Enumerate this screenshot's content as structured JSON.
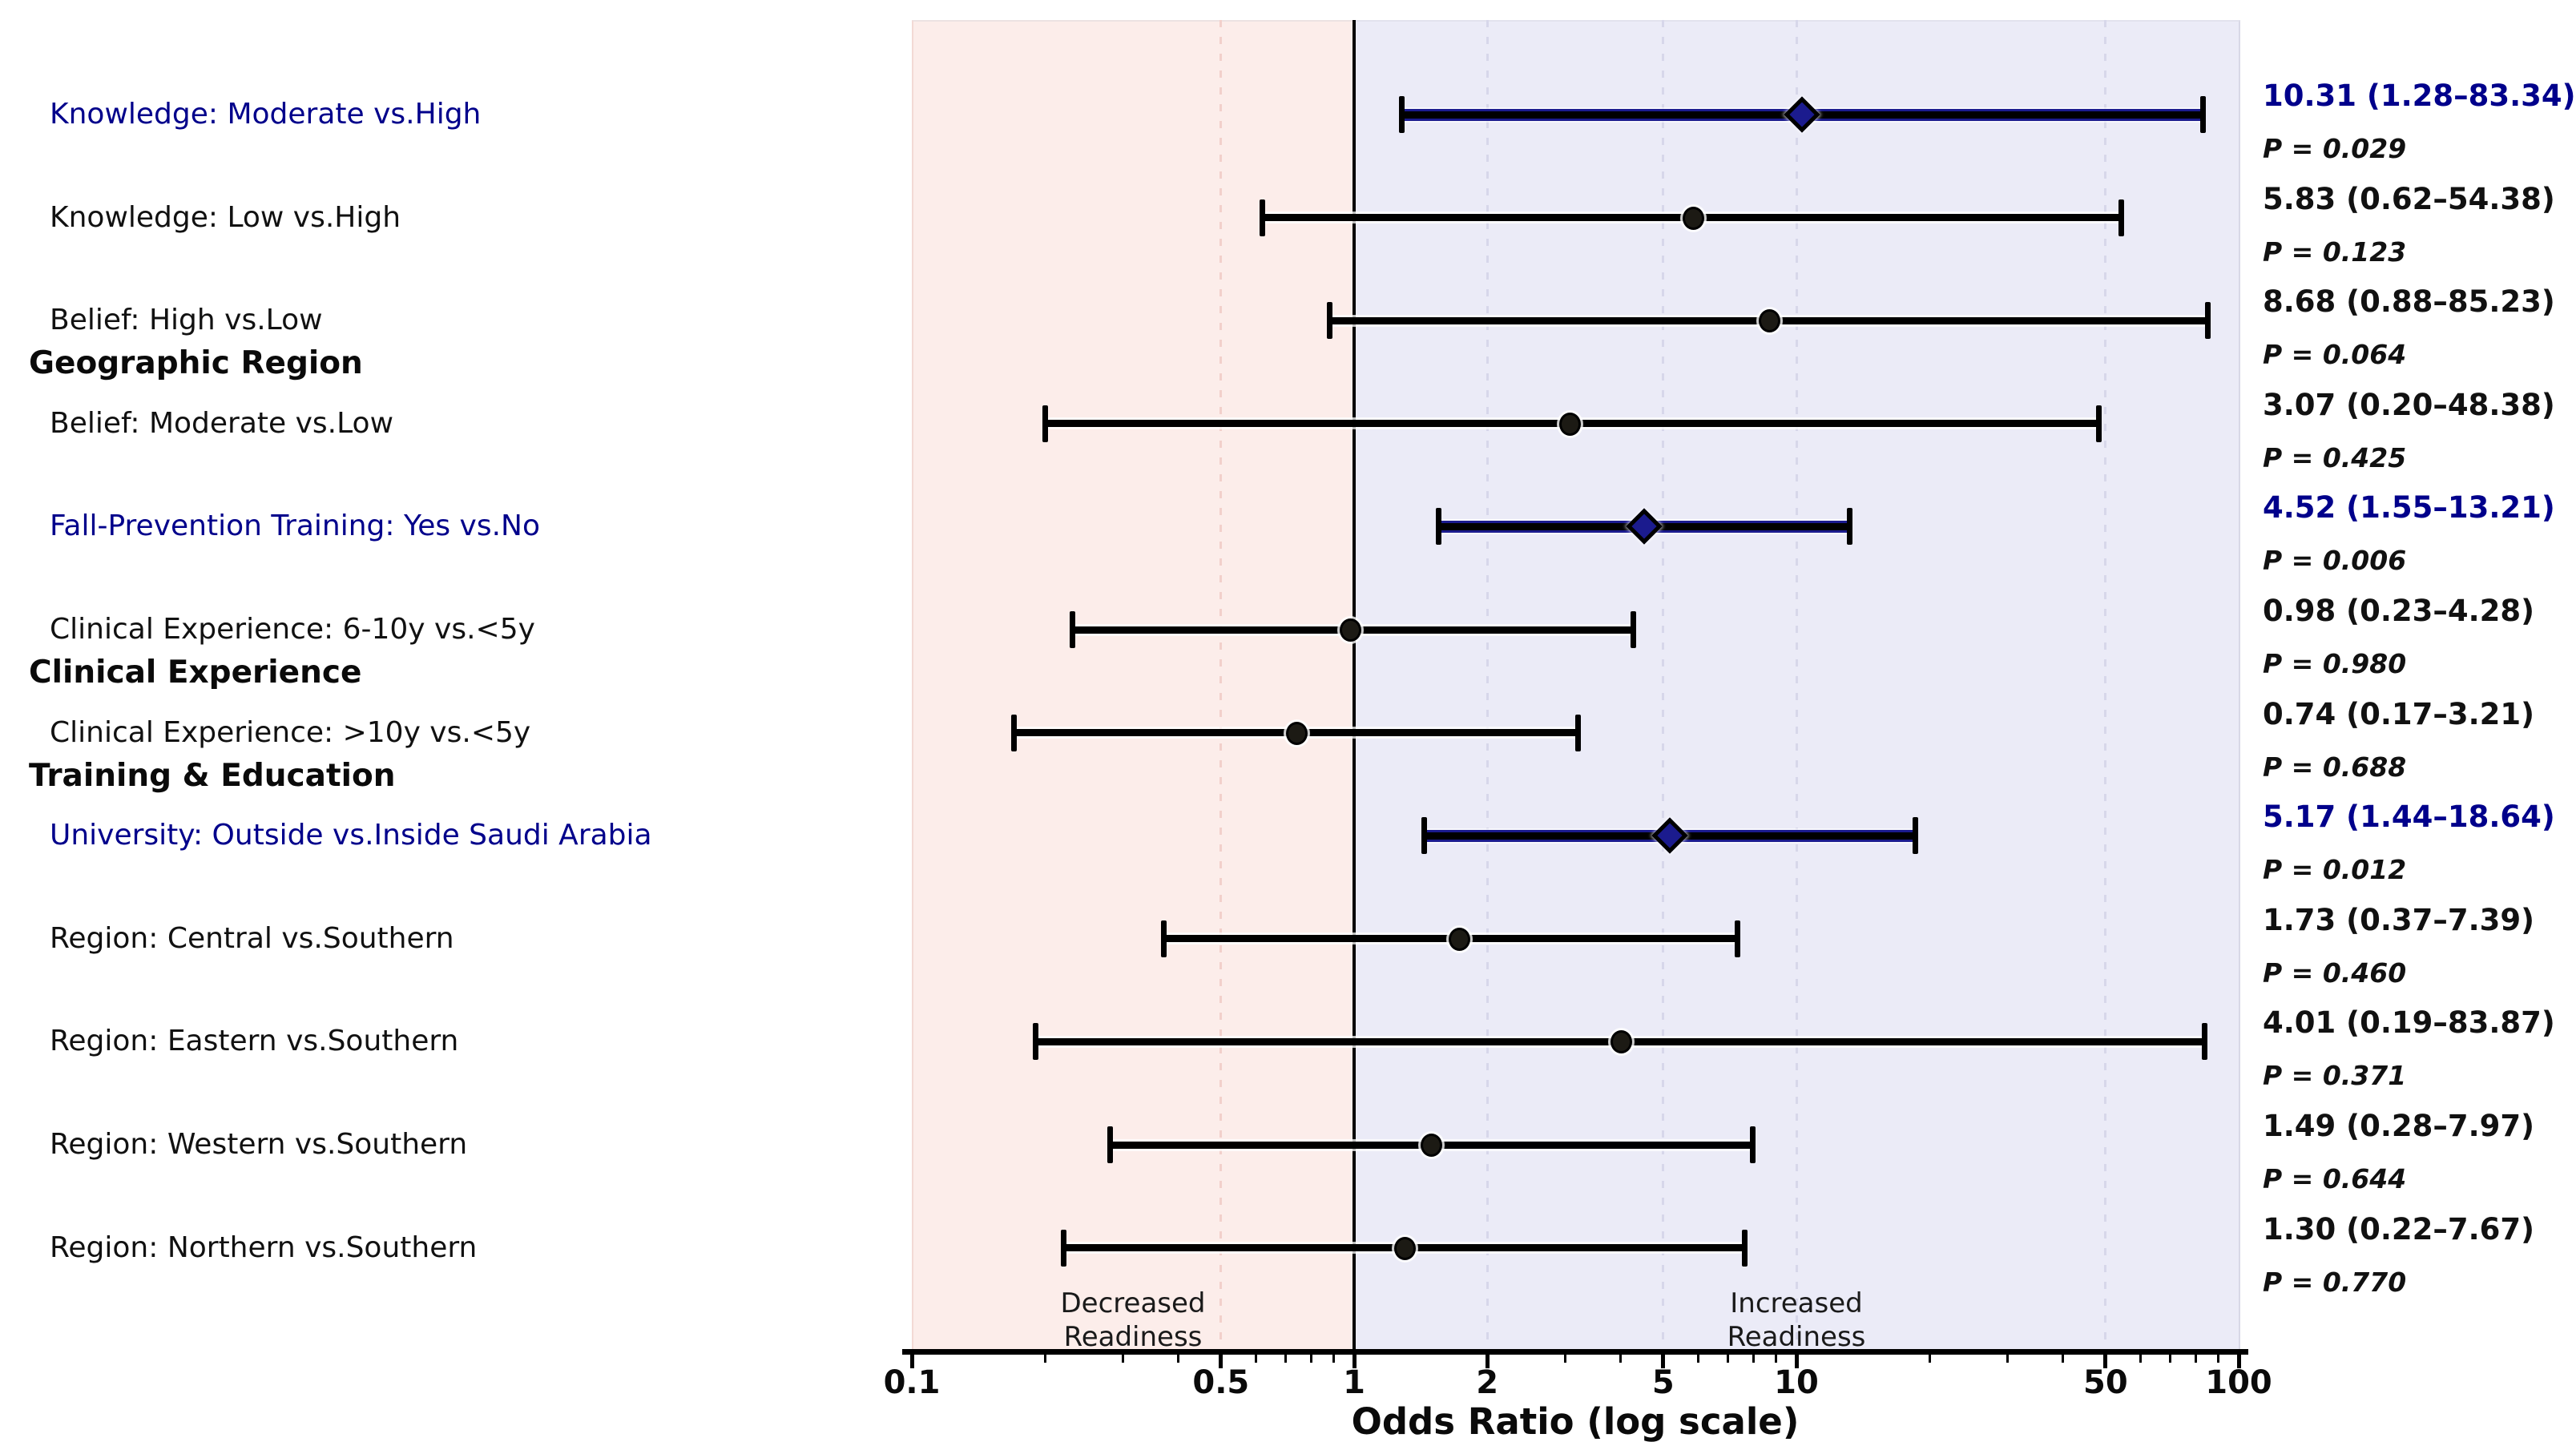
{
  "page": {
    "background": "#ffffff"
  },
  "chart_data": {
    "type": "scatter",
    "subtype": "forest-plot",
    "title": "",
    "xlabel": "Odds Ratio (log scale)",
    "x_scale": "log",
    "x_range": [
      0.1,
      100
    ],
    "x_ticks": [
      0.1,
      0.5,
      1,
      2,
      5,
      10,
      50,
      100
    ],
    "x_tick_labels": [
      "0.1",
      "0.5",
      "1",
      "2",
      "5",
      "10",
      "50",
      "100"
    ],
    "x_minor_ticks": [
      0.2,
      0.3,
      0.4,
      0.6,
      0.7,
      0.8,
      0.9,
      3,
      4,
      6,
      7,
      8,
      9,
      20,
      30,
      40,
      60,
      70,
      80,
      90
    ],
    "reference_line": 1,
    "gridlines_pink": [
      0.5
    ],
    "gridlines_lavender": [
      2,
      5,
      10,
      50
    ],
    "legend_position": "none",
    "grid": "dashed-vertical",
    "zones": [
      {
        "label": "Decreased Readiness",
        "range": [
          0.1,
          1
        ],
        "color": "#fcedea"
      },
      {
        "label": "Increased Readiness",
        "range": [
          1,
          100
        ],
        "color": "#ebebf7"
      }
    ],
    "rows": [
      {
        "label": "Knowledge: Moderate vs.High",
        "or": 10.31,
        "ci_low": 1.28,
        "ci_high": 83.34,
        "or_text": "10.31 (1.28–83.34)",
        "p_text": "P = 0.029",
        "significant": true,
        "marker": "diamond"
      },
      {
        "label": "Knowledge: Low vs.High",
        "or": 5.83,
        "ci_low": 0.62,
        "ci_high": 54.38,
        "or_text": "5.83 (0.62–54.38)",
        "p_text": "P = 0.123",
        "significant": false,
        "marker": "circle"
      },
      {
        "label": "Belief: High vs.Low",
        "or": 8.68,
        "ci_low": 0.88,
        "ci_high": 85.23,
        "or_text": "8.68 (0.88–85.23)",
        "p_text": "P = 0.064",
        "significant": false,
        "marker": "circle"
      },
      {
        "label": "Belief: Moderate vs.Low",
        "or": 3.07,
        "ci_low": 0.2,
        "ci_high": 48.38,
        "or_text": "3.07 (0.20–48.38)",
        "p_text": "P = 0.425",
        "significant": false,
        "marker": "circle"
      },
      {
        "label": "Fall-Prevention Training: Yes vs.No",
        "or": 4.52,
        "ci_low": 1.55,
        "ci_high": 13.21,
        "or_text": "4.52 (1.55–13.21)",
        "p_text": "P = 0.006",
        "significant": true,
        "marker": "diamond"
      },
      {
        "label": "Clinical Experience: 6-10y vs.<5y",
        "or": 0.98,
        "ci_low": 0.23,
        "ci_high": 4.28,
        "or_text": "0.98 (0.23–4.28)",
        "p_text": "P = 0.980",
        "significant": false,
        "marker": "circle"
      },
      {
        "label": "Clinical Experience: >10y vs.<5y",
        "or": 0.74,
        "ci_low": 0.17,
        "ci_high": 3.21,
        "or_text": "0.74 (0.17–3.21)",
        "p_text": "P = 0.688",
        "significant": false,
        "marker": "circle"
      },
      {
        "label": "University: Outside vs.Inside Saudi Arabia",
        "or": 5.17,
        "ci_low": 1.44,
        "ci_high": 18.64,
        "or_text": "5.17 (1.44–18.64)",
        "p_text": "P = 0.012",
        "significant": true,
        "marker": "diamond"
      },
      {
        "label": "Region: Central vs.Southern",
        "or": 1.73,
        "ci_low": 0.37,
        "ci_high": 7.39,
        "or_text": "1.73 (0.37–7.39)",
        "p_text": "P = 0.460",
        "significant": false,
        "marker": "circle"
      },
      {
        "label": "Region: Eastern vs.Southern",
        "or": 4.01,
        "ci_low": 0.19,
        "ci_high": 83.87,
        "or_text": "4.01 (0.19–83.87)",
        "p_text": "P = 0.371",
        "significant": false,
        "marker": "circle"
      },
      {
        "label": "Region: Western vs.Southern",
        "or": 1.49,
        "ci_low": 0.28,
        "ci_high": 7.97,
        "or_text": "1.49 (0.28–7.97)",
        "p_text": "P = 0.644",
        "significant": false,
        "marker": "circle"
      },
      {
        "label": "Region: Northern vs.Southern",
        "or": 1.3,
        "ci_low": 0.22,
        "ci_high": 7.67,
        "or_text": "1.30 (0.22–7.67)",
        "p_text": "P = 0.770",
        "significant": false,
        "marker": "circle"
      }
    ],
    "group_headers": [
      {
        "label": "Geographic Region",
        "after_row": 2
      },
      {
        "label": "Clinical Experience",
        "after_row": 5
      },
      {
        "label": "Training & Education",
        "after_row": 6
      }
    ],
    "colors": {
      "significant_text": "#00008b",
      "diamond_fill": "#1b1b8e",
      "circle_fill": "#1c1a14",
      "zone_decreased_bg": "#fcedea",
      "zone_increased_bg": "#ebebf7",
      "gridline_pink": "#f2d0cb",
      "gridline_lavender": "#d7d7ea",
      "reference_line": "#000000",
      "text": "#111111"
    }
  }
}
